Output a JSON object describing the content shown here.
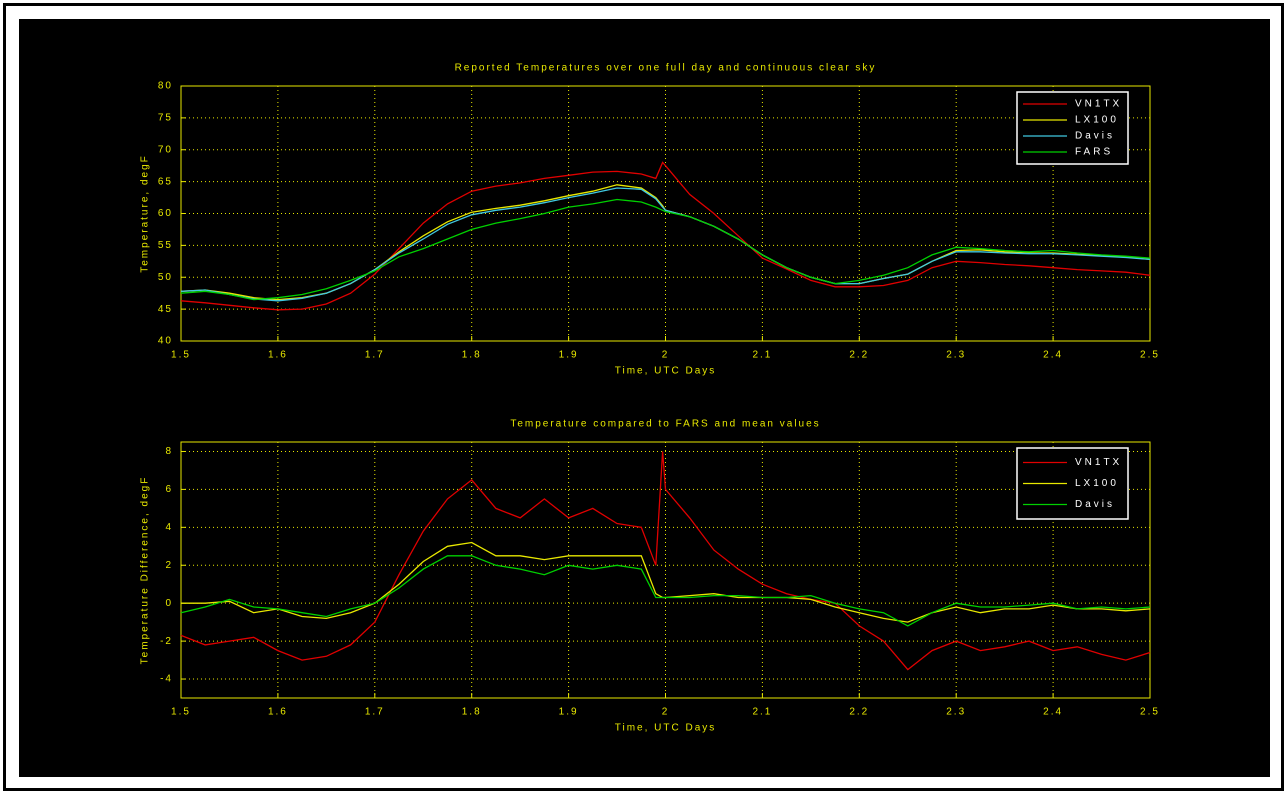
{
  "chart_data": [
    {
      "type": "line",
      "title": "Reported Temperatures over one full day and continuous clear sky",
      "xlabel": "Time, UTC Days",
      "ylabel": "Temperature, degF",
      "x": [
        1.5,
        1.525,
        1.55,
        1.575,
        1.6,
        1.625,
        1.65,
        1.675,
        1.7,
        1.725,
        1.75,
        1.775,
        1.8,
        1.825,
        1.85,
        1.875,
        1.9,
        1.925,
        1.95,
        1.975,
        1.99,
        1.997,
        2.0,
        2.025,
        2.05,
        2.075,
        2.1,
        2.125,
        2.15,
        2.175,
        2.2,
        2.225,
        2.25,
        2.275,
        2.3,
        2.325,
        2.35,
        2.375,
        2.4,
        2.425,
        2.45,
        2.475,
        2.5
      ],
      "series": [
        {
          "name": "VN1TX",
          "color": "#e00000",
          "values": [
            46.3,
            46,
            45.6,
            45.2,
            44.9,
            45,
            45.8,
            47.5,
            50.5,
            54.5,
            58.5,
            61.5,
            63.5,
            64.3,
            64.8,
            65.5,
            66,
            66.5,
            66.6,
            66.2,
            65.5,
            68,
            67.5,
            63,
            60,
            56.5,
            53,
            51.3,
            49.5,
            48.5,
            48.5,
            48.7,
            49.5,
            51.5,
            52.5,
            52.3,
            52,
            51.8,
            51.5,
            51.2,
            51,
            50.8,
            50.3
          ]
        },
        {
          "name": "LX100",
          "color": "#e8e800",
          "values": [
            47.8,
            48,
            47.5,
            46.8,
            46.5,
            46.8,
            47.5,
            49,
            51.2,
            54,
            56.5,
            58.7,
            60.2,
            60.8,
            61.3,
            62,
            62.8,
            63.5,
            64.5,
            64,
            62.5,
            61.2,
            60.5,
            59.5,
            58,
            56,
            53.5,
            51.5,
            50,
            49,
            49,
            49.8,
            50.5,
            52.5,
            54.2,
            54.3,
            54,
            53.8,
            53.8,
            53.6,
            53.4,
            53.2,
            52.8
          ]
        },
        {
          "name": "Davis",
          "color": "#40c8e0",
          "values": [
            47.8,
            48,
            47.3,
            46.6,
            46.3,
            46.7,
            47.5,
            49,
            51.2,
            53.8,
            56,
            58.3,
            59.8,
            60.5,
            61,
            61.7,
            62.5,
            63.2,
            64,
            63.8,
            62.3,
            61,
            60.5,
            59.5,
            58,
            56,
            53.5,
            51.5,
            50,
            49,
            49,
            49.8,
            50.5,
            52.5,
            54,
            54,
            53.8,
            53.7,
            53.7,
            53.5,
            53.3,
            53.1,
            52.8
          ]
        },
        {
          "name": "FARS",
          "color": "#00d000",
          "values": [
            47.5,
            47.8,
            47.3,
            46.5,
            46.8,
            47.3,
            48.2,
            49.5,
            51,
            53.2,
            54.5,
            56,
            57.5,
            58.5,
            59.2,
            60,
            61,
            61.5,
            62.2,
            61.8,
            61,
            60.5,
            60.3,
            59.5,
            58,
            56,
            53.5,
            51.5,
            50,
            49,
            49.5,
            50.3,
            51.5,
            53.5,
            54.7,
            54.5,
            54.2,
            54,
            54.2,
            53.8,
            53.5,
            53.3,
            53
          ]
        }
      ],
      "xlim": [
        1.5,
        2.5
      ],
      "xticks": [
        1.5,
        1.6,
        1.7,
        1.8,
        1.9,
        2,
        2.1,
        2.2,
        2.3,
        2.4,
        2.5
      ],
      "ylim": [
        40,
        80
      ],
      "yticks": [
        40,
        45,
        50,
        55,
        60,
        65,
        70,
        75,
        80
      ],
      "grid": true,
      "legend": "upper right",
      "axis_color": "#e8e800"
    },
    {
      "type": "line",
      "title": "Temperature compared to FARS and mean values",
      "xlabel": "Time, UTC Days",
      "ylabel": "Temperature Difference, degF",
      "x": [
        1.5,
        1.525,
        1.55,
        1.575,
        1.6,
        1.625,
        1.65,
        1.675,
        1.7,
        1.725,
        1.75,
        1.775,
        1.8,
        1.825,
        1.85,
        1.875,
        1.9,
        1.925,
        1.95,
        1.975,
        1.99,
        1.997,
        2.0,
        2.025,
        2.05,
        2.075,
        2.1,
        2.125,
        2.15,
        2.175,
        2.2,
        2.225,
        2.25,
        2.275,
        2.3,
        2.325,
        2.35,
        2.375,
        2.4,
        2.425,
        2.45,
        2.475,
        2.5
      ],
      "series": [
        {
          "name": "VN1TX",
          "color": "#e00000",
          "values": [
            -1.7,
            -2.2,
            -2,
            -1.8,
            -2.5,
            -3,
            -2.8,
            -2.2,
            -1,
            1.5,
            3.8,
            5.5,
            6.5,
            5,
            4.5,
            5.5,
            4.5,
            5,
            4.2,
            4,
            2,
            8,
            6,
            4.5,
            2.8,
            1.8,
            1,
            0.5,
            0.2,
            0,
            -1.2,
            -2,
            -3.5,
            -2.5,
            -2,
            -2.5,
            -2.3,
            -2,
            -2.5,
            -2.3,
            -2.7,
            -3,
            -2.6
          ]
        },
        {
          "name": "LX100",
          "color": "#e8e800",
          "values": [
            0,
            0,
            0.1,
            -0.5,
            -0.3,
            -0.7,
            -0.8,
            -0.5,
            0,
            1,
            2.2,
            3,
            3.2,
            2.5,
            2.5,
            2.3,
            2.5,
            2.5,
            2.5,
            2.5,
            0.5,
            0.3,
            0.3,
            0.4,
            0.5,
            0.3,
            0.3,
            0.3,
            0.2,
            -0.2,
            -0.5,
            -0.8,
            -1,
            -0.5,
            -0.2,
            -0.5,
            -0.3,
            -0.3,
            -0.1,
            -0.3,
            -0.3,
            -0.4,
            -0.3
          ]
        },
        {
          "name": "Davis",
          "color": "#00d000",
          "values": [
            -0.5,
            -0.2,
            0.2,
            -0.2,
            -0.3,
            -0.5,
            -0.7,
            -0.3,
            0,
            0.8,
            1.8,
            2.5,
            2.5,
            2,
            1.8,
            1.5,
            2,
            1.8,
            2,
            1.8,
            0.3,
            0.3,
            0.3,
            0.3,
            0.4,
            0.4,
            0.3,
            0.3,
            0.4,
            0,
            -0.3,
            -0.5,
            -1.2,
            -0.5,
            0,
            -0.2,
            -0.2,
            -0.1,
            0,
            -0.3,
            -0.2,
            -0.3,
            -0.2
          ]
        }
      ],
      "xlim": [
        1.5,
        2.5
      ],
      "xticks": [
        1.5,
        1.6,
        1.7,
        1.8,
        1.9,
        2,
        2.1,
        2.2,
        2.3,
        2.4,
        2.5
      ],
      "ylim": [
        -5,
        8.5
      ],
      "yticks": [
        -4,
        -2,
        0,
        2,
        4,
        6,
        8
      ],
      "grid": true,
      "legend": "upper right",
      "axis_color": "#e8e800"
    }
  ]
}
